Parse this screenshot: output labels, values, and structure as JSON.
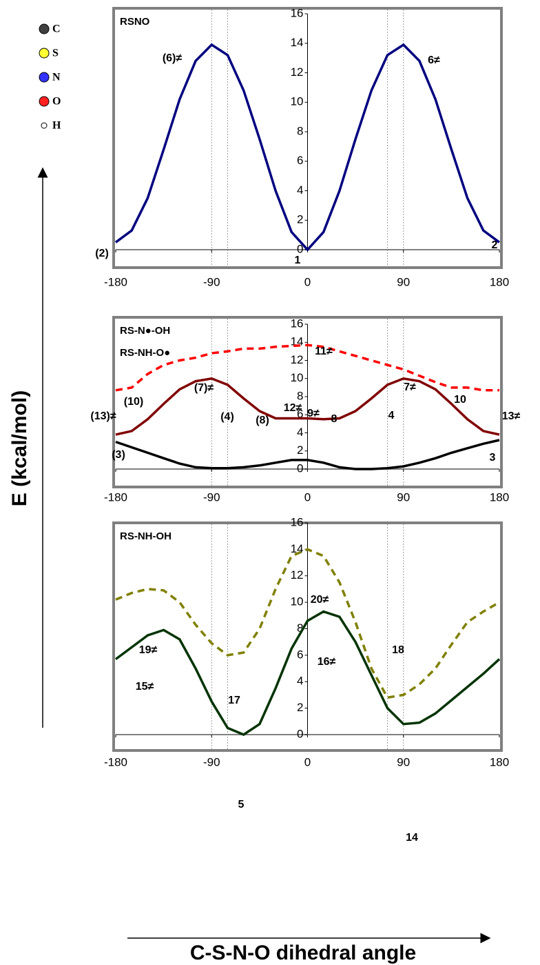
{
  "axis_labels": {
    "y": "E (kcal/mol)",
    "x": "C-S-N-O dihedral angle"
  },
  "atom_legend": [
    {
      "label": "C",
      "color": "#404040"
    },
    {
      "label": "S",
      "color": "#ffff33"
    },
    {
      "label": "N",
      "color": "#3333ff"
    },
    {
      "label": "O",
      "color": "#ff2020"
    },
    {
      "label": "H",
      "color": "#ffffff"
    }
  ],
  "chart_data": [
    {
      "type": "line",
      "title": "RSNO",
      "x": [
        -180,
        -165,
        -150,
        -135,
        -120,
        -105,
        -90,
        -75,
        -60,
        -45,
        -30,
        -15,
        0,
        15,
        30,
        45,
        60,
        75,
        90,
        105,
        120,
        135,
        150,
        165,
        180
      ],
      "series": [
        {
          "color": "#000080",
          "dash": false,
          "values": [
            0.5,
            1.3,
            3.5,
            6.8,
            10.2,
            12.8,
            13.9,
            13.2,
            10.8,
            7.5,
            4.0,
            1.2,
            0,
            1.2,
            4.0,
            7.5,
            10.8,
            13.2,
            13.9,
            12.8,
            10.2,
            6.8,
            3.5,
            1.3,
            0.5
          ]
        }
      ],
      "xlim": [
        -180,
        180
      ],
      "xticks": [
        -180,
        -90,
        0,
        90,
        180
      ],
      "ylim": [
        0,
        16
      ],
      "yticks": [
        0,
        2,
        4,
        6,
        8,
        10,
        12,
        14,
        16
      ],
      "vlines": [
        -90,
        -75,
        75,
        90
      ],
      "annotations": [
        "(6)≠",
        "6≠",
        "(2)",
        "1",
        "2"
      ]
    },
    {
      "type": "line",
      "x": [
        -180,
        -165,
        -150,
        -135,
        -120,
        -105,
        -90,
        -75,
        -60,
        -45,
        -30,
        -15,
        0,
        15,
        30,
        45,
        60,
        75,
        90,
        105,
        120,
        135,
        150,
        165,
        180
      ],
      "series": [
        {
          "name": "RS-N●-OH",
          "color": "#ff0000",
          "dash": true,
          "values": [
            8.7,
            9.0,
            10.5,
            11.5,
            12.0,
            12.3,
            12.8,
            13.0,
            13.3,
            13.3,
            13.5,
            13.6,
            13.7,
            13.5,
            13.0,
            12.5,
            12.0,
            11.5,
            11.0,
            10.3,
            9.6,
            9.0,
            9.0,
            8.7,
            8.7
          ]
        },
        {
          "name": "RS-NH-O●",
          "color": "#800000",
          "dash": false,
          "values": [
            3.8,
            4.2,
            5.5,
            7.2,
            8.8,
            9.7,
            10.0,
            9.3,
            7.8,
            6.4,
            5.6,
            5.6,
            5.6,
            5.5,
            5.6,
            6.4,
            7.8,
            9.3,
            10.0,
            9.7,
            8.8,
            7.2,
            5.5,
            4.2,
            3.8
          ]
        },
        {
          "color": "#000000",
          "dash": false,
          "values": [
            3.0,
            2.4,
            1.8,
            1.2,
            0.6,
            0.2,
            0.1,
            0.1,
            0.2,
            0.4,
            0.7,
            1.0,
            1.0,
            0.7,
            0.2,
            0,
            0,
            0.1,
            0.3,
            0.7,
            1.2,
            1.8,
            2.3,
            2.8,
            3.2
          ]
        }
      ],
      "xlim": [
        -180,
        180
      ],
      "xticks": [
        -180,
        -90,
        0,
        90,
        180
      ],
      "ylim": [
        0,
        16
      ],
      "yticks": [
        0,
        2,
        4,
        6,
        8,
        10,
        12,
        14,
        16
      ],
      "vlines": [
        -90,
        -75,
        75,
        90
      ],
      "annotations": [
        "(10)",
        "(7)≠",
        "11≠",
        "7≠",
        "10",
        "(3)",
        "(8)",
        "9≠",
        "8",
        "3",
        "(13)≠",
        "(4)",
        "12≠",
        "4",
        "13≠"
      ]
    },
    {
      "type": "line",
      "title": "RS-NH-OH",
      "x": [
        -180,
        -165,
        -150,
        -135,
        -120,
        -105,
        -90,
        -75,
        -60,
        -45,
        -30,
        -15,
        0,
        15,
        30,
        45,
        60,
        75,
        90,
        105,
        120,
        135,
        150,
        165,
        180
      ],
      "series": [
        {
          "color": "#808000",
          "dash": true,
          "values": [
            10.2,
            10.7,
            11.0,
            10.9,
            10.0,
            8.3,
            6.9,
            6.0,
            6.2,
            8.0,
            11.0,
            13.5,
            14.0,
            13.5,
            11.5,
            8.5,
            5.0,
            2.8,
            3.0,
            3.8,
            5.0,
            6.8,
            8.5,
            9.3,
            10.0
          ]
        },
        {
          "color": "#003300",
          "dash": false,
          "values": [
            5.7,
            6.6,
            7.5,
            7.9,
            7.2,
            5.0,
            2.5,
            0.5,
            0,
            0.8,
            3.5,
            6.5,
            8.6,
            9.3,
            8.9,
            7.0,
            4.5,
            2.0,
            0.8,
            0.9,
            1.6,
            2.6,
            3.6,
            4.6,
            5.7
          ]
        }
      ],
      "xlim": [
        -180,
        180
      ],
      "xticks": [
        -180,
        -90,
        0,
        90,
        180
      ],
      "ylim": [
        0,
        16
      ],
      "yticks": [
        0,
        2,
        4,
        6,
        8,
        10,
        12,
        14,
        16
      ],
      "vlines": [
        -90,
        -75,
        75,
        90
      ],
      "annotations": [
        "19≠",
        "15≠",
        "17",
        "20≠",
        "16≠",
        "18",
        "5",
        "14"
      ]
    }
  ]
}
